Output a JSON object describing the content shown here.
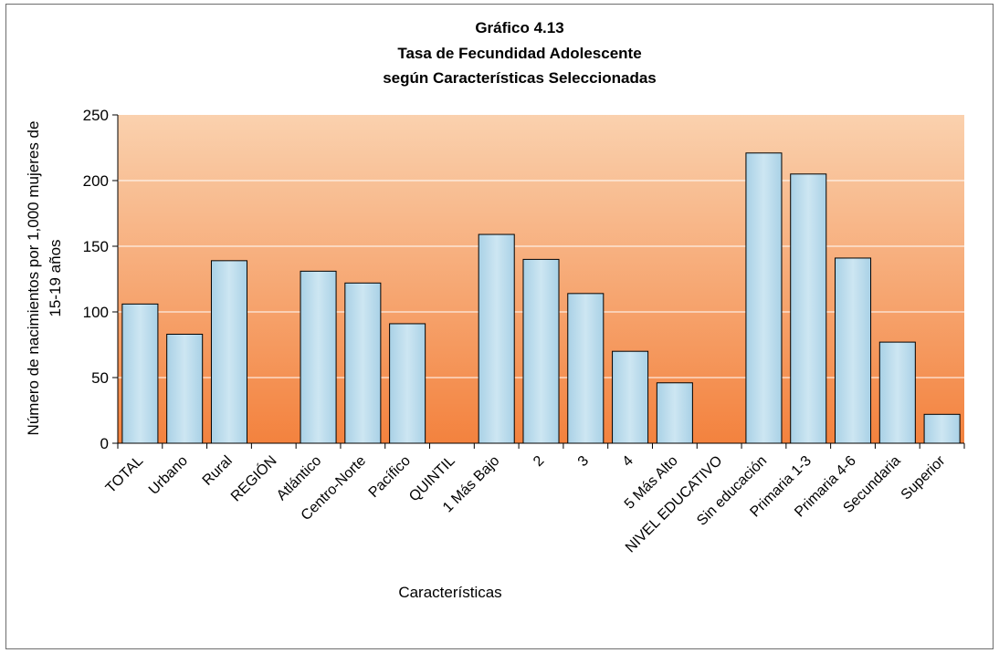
{
  "chart_data": {
    "type": "bar",
    "title": [
      "Gráfico 4.13",
      "Tasa de Fecundidad Adolescente",
      "según Características Seleccionadas"
    ],
    "xlabel": "Características",
    "ylabel": [
      "Número de nacimientos por 1,000 mujeres de",
      "15-19 años"
    ],
    "ylim": [
      0,
      250
    ],
    "yticks": [
      0,
      50,
      100,
      150,
      200,
      250
    ],
    "grid": true,
    "categories": [
      "TOTAL",
      "Urbano",
      "Rural",
      "REGIÓN",
      "Atlántico",
      "Centro-Norte",
      "Pacífico",
      "QUINTIL",
      "1 Más Bajo",
      "2",
      "3",
      "4",
      "5 Más Alto",
      "NIVEL EDUCATIVO",
      "Sin educación",
      "Primaria 1-3",
      "Primaria 4-6",
      "Secundaria",
      "Superior"
    ],
    "values": [
      106,
      83,
      139,
      null,
      131,
      122,
      91,
      null,
      159,
      140,
      114,
      70,
      46,
      null,
      221,
      205,
      141,
      77,
      22
    ],
    "colors": {
      "bar_fill_top": "#cde6f2",
      "bar_fill_bottom": "#a9d1e6",
      "bar_stroke": "#000000",
      "plot_bg_top": "#fad1ae",
      "plot_bg_bottom": "#f3823e",
      "gridline": "#ffffff"
    }
  }
}
